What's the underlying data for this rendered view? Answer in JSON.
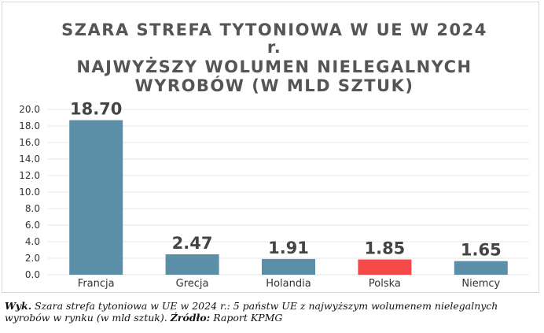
{
  "chart_data": {
    "type": "bar",
    "title_lines": [
      "SZARA STREFA TYTONIOWA W UE W 2024",
      "r.",
      "NAJWYŻSZY WOLUMEN NIELEGALNYCH",
      "WYROBÓW (W MLD SZTUK)"
    ],
    "categories": [
      "Francja",
      "Grecja",
      "Holandia",
      "Polska",
      "Niemcy"
    ],
    "values": [
      18.7,
      2.47,
      1.91,
      1.85,
      1.65
    ],
    "data_labels": [
      "18.70",
      "2.47",
      "1.91",
      "1.85",
      "1.65"
    ],
    "bar_colors": [
      "#5b8fa8",
      "#5b8fa8",
      "#5b8fa8",
      "#f44a4a",
      "#5b8fa8"
    ],
    "yticks": [
      "0.0",
      "2.0",
      "4.0",
      "6.0",
      "8.0",
      "10.0",
      "12.0",
      "14.0",
      "16.0",
      "18.0",
      "20.0"
    ],
    "ylim": [
      0,
      20
    ],
    "grid": true,
    "xlabel": "",
    "ylabel": ""
  },
  "caption": {
    "label": "Wyk.",
    "text": "Szara strefa tytoniowa w UE w 2024 r.: 5 państw UE z najwyższym wolumenem nielegalnych wyrobów w rynku (w mld sztuk).",
    "source_label": "Źródło:",
    "source_text": "Raport KPMG"
  }
}
